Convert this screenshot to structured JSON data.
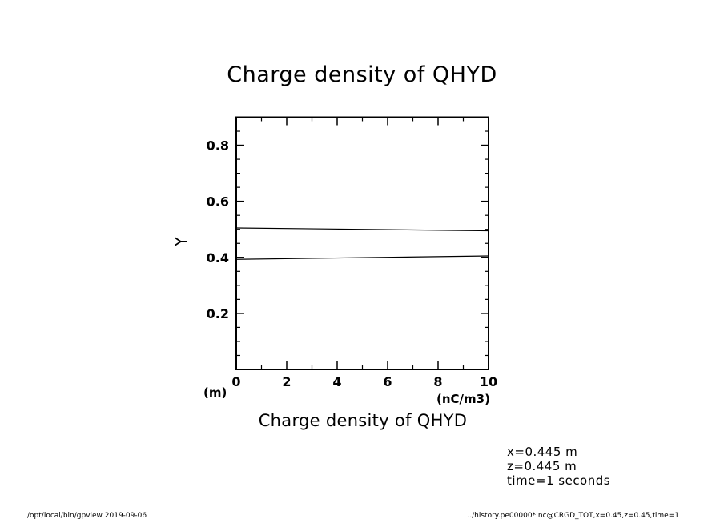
{
  "chart_data": {
    "type": "line",
    "title": "Charge density of QHYD",
    "xlabel": "Charge density of QHYD",
    "ylabel": "Y",
    "x_unit": "(nC/m3)",
    "y_unit": "(m)",
    "xlim": [
      0,
      10
    ],
    "ylim": [
      0,
      0.9
    ],
    "x_ticks": [
      0,
      2,
      4,
      6,
      8,
      10
    ],
    "y_ticks": [
      0.2,
      0.4,
      0.6,
      0.8
    ],
    "x_tick_labels": [
      "0",
      "2",
      "4",
      "6",
      "8",
      "10"
    ],
    "y_tick_labels": [
      "0.2",
      "0.4",
      "0.6",
      "0.8"
    ],
    "grid": false,
    "series": [
      {
        "x": [
          0,
          10
        ],
        "y": [
          0.505,
          0.495
        ]
      },
      {
        "x": [
          0,
          10
        ],
        "y": [
          0.393,
          0.405
        ]
      }
    ]
  },
  "info": {
    "x_line": "x=0.445  m",
    "z_line": "z=0.445  m",
    "time_line": "time=1  seconds"
  },
  "footer": {
    "left": "/opt/local/bin/gpview   2019-09-06",
    "right": "../history.pe00000*.nc@CRGD_TOT,x=0.45,z=0.45,time=1"
  }
}
